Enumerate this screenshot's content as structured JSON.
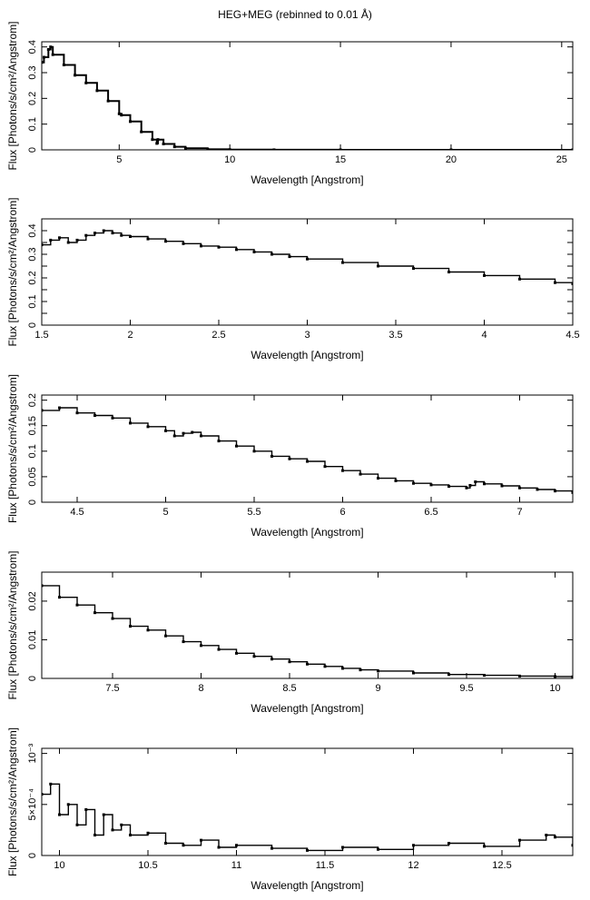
{
  "title": "HEG+MEG (rebinned to 0.01 Å)",
  "chart_data": [
    {
      "type": "line",
      "xlabel": "Wavelength [Angstrom]",
      "ylabel": "Flux [Photons/s/cm²/Angstrom]",
      "xlim": [
        1.5,
        25.5
      ],
      "ylim": [
        0,
        0.42
      ],
      "xticks": [
        5,
        10,
        15,
        20,
        25
      ],
      "yticks": [
        0,
        0.1,
        0.2,
        0.3,
        0.4
      ],
      "x": [
        1.5,
        1.6,
        1.8,
        1.9,
        2.0,
        2.5,
        3.0,
        3.5,
        4.0,
        4.5,
        5.0,
        5.1,
        5.5,
        6.0,
        6.5,
        6.7,
        6.75,
        7.0,
        7.5,
        8.0,
        9.0,
        10.0,
        12.0,
        15.0,
        20.0,
        25.5
      ],
      "series": [
        {
          "values": [
            0.34,
            0.36,
            0.39,
            0.4,
            0.37,
            0.33,
            0.29,
            0.26,
            0.23,
            0.19,
            0.14,
            0.135,
            0.11,
            0.07,
            0.04,
            0.025,
            0.04,
            0.023,
            0.012,
            0.006,
            0.002,
            0.0006,
            0.0002,
            0.0001,
            0.0,
            0.0
          ]
        }
      ]
    },
    {
      "type": "line",
      "xlabel": "Wavelength [Angstrom]",
      "ylabel": "Flux [Photons/s/cm²/Angstrom]",
      "xlim": [
        1.5,
        4.5
      ],
      "ylim": [
        0,
        0.45
      ],
      "xticks": [
        1.5,
        2,
        2.5,
        3,
        3.5,
        4,
        4.5
      ],
      "yticks": [
        0,
        0.05,
        0.1,
        0.15,
        0.2,
        0.25,
        0.3,
        0.35,
        0.4
      ],
      "ytick_labels": [
        "0",
        "0.1",
        "0.2",
        "0.3",
        "0.4"
      ],
      "x": [
        1.5,
        1.55,
        1.6,
        1.65,
        1.7,
        1.75,
        1.8,
        1.85,
        1.9,
        1.95,
        2.0,
        2.1,
        2.2,
        2.3,
        2.4,
        2.5,
        2.6,
        2.7,
        2.8,
        2.9,
        3.0,
        3.2,
        3.4,
        3.6,
        3.8,
        4.0,
        4.2,
        4.4,
        4.5
      ],
      "series": [
        {
          "values": [
            0.34,
            0.36,
            0.37,
            0.35,
            0.36,
            0.38,
            0.39,
            0.4,
            0.39,
            0.38,
            0.375,
            0.365,
            0.355,
            0.345,
            0.335,
            0.33,
            0.32,
            0.31,
            0.3,
            0.29,
            0.28,
            0.265,
            0.25,
            0.24,
            0.225,
            0.21,
            0.195,
            0.18,
            0.175
          ]
        }
      ]
    },
    {
      "type": "line",
      "xlabel": "Wavelength [Angstrom]",
      "ylabel": "Flux [Photons/s/cm²/Angstrom]",
      "xlim": [
        4.3,
        7.3
      ],
      "ylim": [
        0,
        0.21
      ],
      "xticks": [
        4.5,
        5,
        5.5,
        6,
        6.5,
        7
      ],
      "yticks": [
        0,
        0.05,
        0.1,
        0.15,
        0.2
      ],
      "x": [
        4.3,
        4.4,
        4.5,
        4.6,
        4.7,
        4.8,
        4.9,
        5.0,
        5.05,
        5.1,
        5.15,
        5.2,
        5.3,
        5.4,
        5.5,
        5.6,
        5.7,
        5.8,
        5.9,
        6.0,
        6.1,
        6.2,
        6.3,
        6.4,
        6.5,
        6.6,
        6.7,
        6.72,
        6.75,
        6.8,
        6.9,
        7.0,
        7.1,
        7.2,
        7.3
      ],
      "series": [
        {
          "values": [
            0.18,
            0.185,
            0.175,
            0.17,
            0.165,
            0.155,
            0.148,
            0.14,
            0.13,
            0.135,
            0.137,
            0.13,
            0.12,
            0.11,
            0.1,
            0.09,
            0.085,
            0.08,
            0.07,
            0.062,
            0.055,
            0.047,
            0.042,
            0.037,
            0.034,
            0.031,
            0.028,
            0.033,
            0.04,
            0.036,
            0.032,
            0.028,
            0.025,
            0.022,
            0.019
          ]
        }
      ]
    },
    {
      "type": "line",
      "xlabel": "Wavelength [Angstrom]",
      "ylabel": "Flux [Photons/s/cm²/Angstrom]",
      "xlim": [
        7.1,
        10.1
      ],
      "ylim": [
        0,
        0.0275
      ],
      "xticks": [
        7.5,
        8,
        8.5,
        9,
        9.5,
        10
      ],
      "yticks": [
        0,
        0.01,
        0.02
      ],
      "x": [
        7.1,
        7.2,
        7.3,
        7.4,
        7.5,
        7.6,
        7.7,
        7.8,
        7.9,
        8.0,
        8.1,
        8.2,
        8.3,
        8.4,
        8.5,
        8.6,
        8.7,
        8.8,
        8.9,
        9.0,
        9.2,
        9.4,
        9.6,
        9.8,
        10.0,
        10.1
      ],
      "series": [
        {
          "values": [
            0.024,
            0.021,
            0.019,
            0.017,
            0.0155,
            0.0135,
            0.0125,
            0.011,
            0.0095,
            0.0085,
            0.0075,
            0.0065,
            0.0057,
            0.005,
            0.0043,
            0.0037,
            0.0031,
            0.0026,
            0.0022,
            0.0019,
            0.0014,
            0.001,
            0.0008,
            0.0006,
            0.0005,
            0.0004
          ]
        }
      ]
    },
    {
      "type": "line",
      "xlabel": "Wavelength [Angstrom]",
      "ylabel": "Flux [Photons/s/cm²/Angstrom]",
      "xlim": [
        9.9,
        12.9
      ],
      "ylim": [
        0,
        0.00105
      ],
      "xticks": [
        10,
        10.5,
        11,
        11.5,
        12,
        12.5
      ],
      "yticks": [
        0,
        0.0005,
        0.001
      ],
      "ytick_labels": [
        "0",
        "5×10⁻⁴",
        "10⁻³"
      ],
      "x": [
        9.9,
        9.95,
        10.0,
        10.05,
        10.1,
        10.15,
        10.2,
        10.25,
        10.3,
        10.35,
        10.4,
        10.5,
        10.6,
        10.7,
        10.8,
        10.9,
        11.0,
        11.2,
        11.4,
        11.6,
        11.8,
        12.0,
        12.2,
        12.4,
        12.6,
        12.75,
        12.8,
        12.9
      ],
      "series": [
        {
          "values": [
            0.0006,
            0.0007,
            0.0004,
            0.0005,
            0.0003,
            0.00045,
            0.0002,
            0.0004,
            0.00025,
            0.0003,
            0.0002,
            0.00022,
            0.00012,
            0.0001,
            0.00015,
            8e-05,
            0.0001,
            7e-05,
            5e-05,
            8e-05,
            6e-05,
            0.0001,
            0.00012,
            9e-05,
            0.00015,
            0.0002,
            0.00018,
            0.0001
          ]
        }
      ]
    }
  ]
}
